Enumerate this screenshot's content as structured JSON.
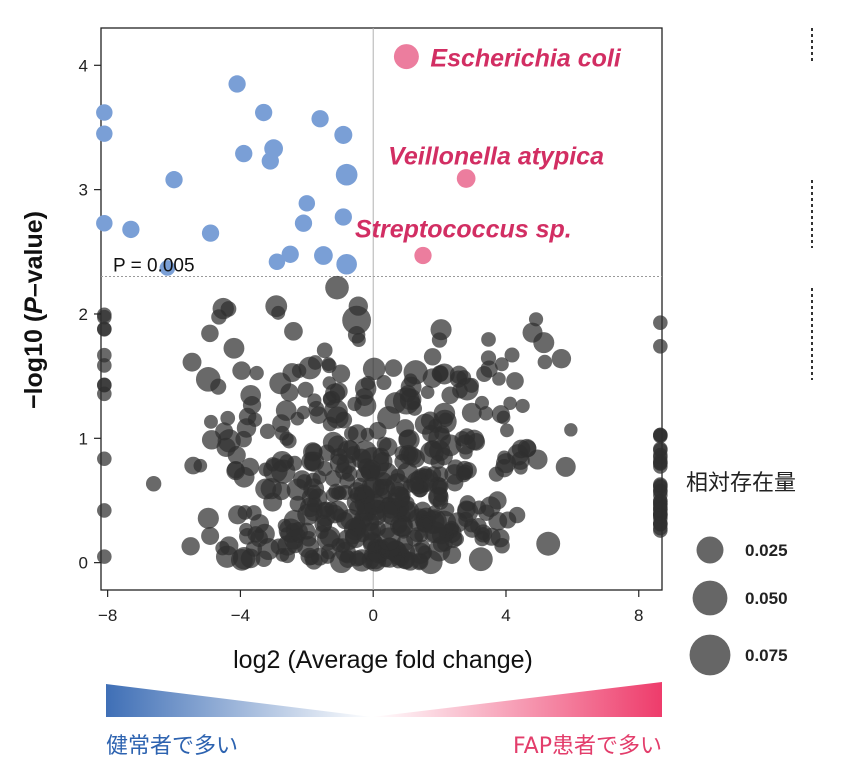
{
  "chart_data": {
    "type": "scatter",
    "xlabel": "log2 (Average fold change)",
    "ylabel_parts": [
      "−log10 (",
      "P",
      "–value)"
    ],
    "xlim": [
      -8.2,
      8.7
    ],
    "ylim": [
      -0.22,
      4.3
    ],
    "xticks": [
      {
        "value": -8,
        "label": "−8"
      },
      {
        "value": -4,
        "label": "−4"
      },
      {
        "value": 0,
        "label": "0"
      },
      {
        "value": 4,
        "label": "4"
      },
      {
        "value": 8,
        "label": "8"
      }
    ],
    "yticks": [
      {
        "value": 0,
        "label": "0"
      },
      {
        "value": 1,
        "label": "1"
      },
      {
        "value": 2,
        "label": "2"
      },
      {
        "value": 3,
        "label": "3"
      },
      {
        "value": 4,
        "label": "4"
      }
    ],
    "threshold": {
      "y": 2.301,
      "label": "P = 0.005"
    },
    "colors": {
      "healthy": "#7a9fd6",
      "fap": "#ec7d9e",
      "other": "#3a3a3a",
      "highlight_text": "#d22e63"
    },
    "size_legend": {
      "title": "相対存在量",
      "items": [
        {
          "value": 0.025,
          "label": "0.025"
        },
        {
          "value": 0.05,
          "label": "0.050"
        },
        {
          "value": 0.075,
          "label": "0.075"
        }
      ]
    },
    "healthy_points": [
      {
        "x": -8.1,
        "y": 3.62,
        "s": 0.005
      },
      {
        "x": -8.1,
        "y": 3.45,
        "s": 0.005
      },
      {
        "x": -8.1,
        "y": 2.73,
        "s": 0.005
      },
      {
        "x": -7.3,
        "y": 2.68,
        "s": 0.006
      },
      {
        "x": -6.2,
        "y": 2.37,
        "s": 0.004
      },
      {
        "x": -6.0,
        "y": 3.08,
        "s": 0.006
      },
      {
        "x": -4.9,
        "y": 2.65,
        "s": 0.006
      },
      {
        "x": -4.1,
        "y": 3.85,
        "s": 0.006
      },
      {
        "x": -3.9,
        "y": 3.29,
        "s": 0.006
      },
      {
        "x": -3.3,
        "y": 3.62,
        "s": 0.006
      },
      {
        "x": -3.1,
        "y": 3.23,
        "s": 0.006
      },
      {
        "x": -3.0,
        "y": 3.33,
        "s": 0.008
      },
      {
        "x": -2.9,
        "y": 2.42,
        "s": 0.005
      },
      {
        "x": -2.5,
        "y": 2.48,
        "s": 0.006
      },
      {
        "x": -2.1,
        "y": 2.73,
        "s": 0.006
      },
      {
        "x": -2.0,
        "y": 2.89,
        "s": 0.005
      },
      {
        "x": -1.6,
        "y": 3.57,
        "s": 0.006
      },
      {
        "x": -1.5,
        "y": 2.47,
        "s": 0.008
      },
      {
        "x": -0.9,
        "y": 3.44,
        "s": 0.007
      },
      {
        "x": -0.8,
        "y": 3.12,
        "s": 0.013
      },
      {
        "x": -0.9,
        "y": 2.78,
        "s": 0.006
      },
      {
        "x": -0.8,
        "y": 2.4,
        "s": 0.011
      }
    ],
    "fap_points": [
      {
        "x": 1.0,
        "y": 4.07,
        "s": 0.02,
        "label": "Escherichia coli"
      },
      {
        "x": 2.8,
        "y": 3.09,
        "s": 0.008,
        "label": "Veillonella atypica"
      },
      {
        "x": 1.5,
        "y": 2.47,
        "s": 0.006,
        "label": "Streptococcus sp."
      }
    ],
    "caption_left": "健常者で多い",
    "caption_right": "FAP患者で多い"
  }
}
